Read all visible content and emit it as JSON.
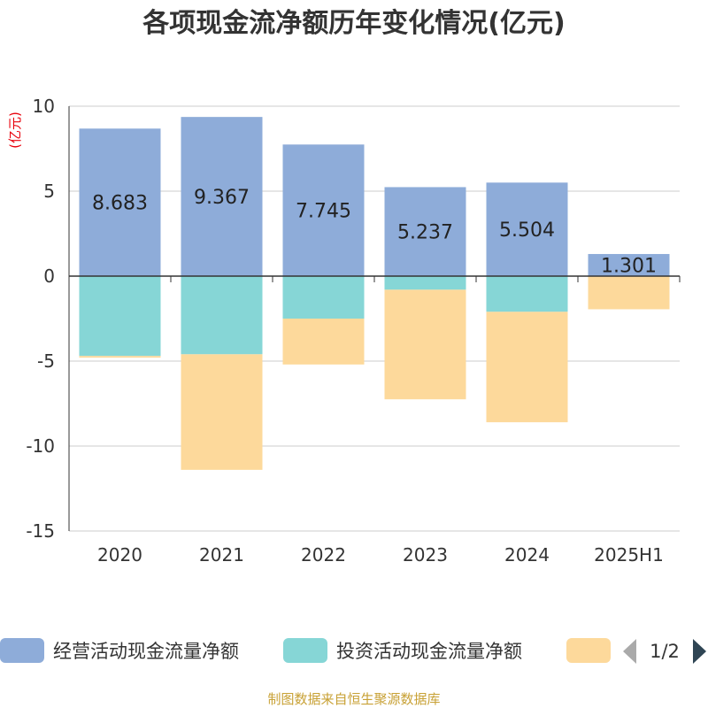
{
  "title": "各项现金流净额历年变化情况(亿元)",
  "unit_label": "(亿元)",
  "source": "制图数据来自恒生聚源数据库",
  "legend": {
    "items": [
      "经营活动现金流量净额",
      "投资活动现金流量净额",
      ""
    ],
    "page": "1/2"
  },
  "colors": {
    "operating": "#8eacd9",
    "investing": "#86d6d6",
    "third": "#fdd99b",
    "title": "#333333",
    "unit": "#e8000b",
    "source": "#c8a135",
    "grid": "#cccccc",
    "axis": "#333333"
  },
  "chart_data": {
    "type": "bar",
    "stacked": true,
    "categories": [
      "2020",
      "2021",
      "2022",
      "2023",
      "2024",
      "2025H1"
    ],
    "series": [
      {
        "name": "经营活动现金流量净额",
        "values": [
          8.683,
          9.367,
          7.745,
          5.237,
          5.504,
          1.301
        ],
        "labels": [
          "8.683",
          "9.367",
          "7.745",
          "5.237",
          "5.504",
          "1.301"
        ]
      },
      {
        "name": "投资活动现金流量净额",
        "values": [
          -4.7,
          -4.6,
          -2.5,
          -0.8,
          -2.1,
          0
        ]
      },
      {
        "values": [
          -0.1,
          -6.8,
          -2.7,
          -6.45,
          -6.5,
          -1.95
        ]
      }
    ],
    "ylim": [
      -15,
      10
    ],
    "yticks": [
      10,
      5,
      0,
      -5,
      -10,
      -15
    ],
    "grid": true,
    "legend_position": "bottom"
  }
}
